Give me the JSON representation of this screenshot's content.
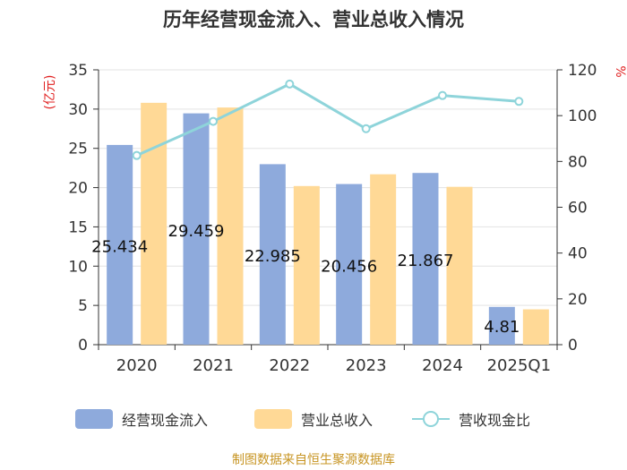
{
  "title": "历年经营现金流入、营业总收入情况",
  "source": "制图数据来自恒生聚源数据库",
  "colors": {
    "inflow": "#8eaadc",
    "revenue": "#ffd996",
    "ratio": "#8ed4da",
    "axis_left": "#e02020",
    "axis_right": "#e02020",
    "grid": "#e3e3e3"
  },
  "legend": {
    "inflow": "经营现金流入",
    "revenue": "营业总收入",
    "ratio": "营收现金比"
  },
  "chart_data": {
    "type": "bar",
    "categories": [
      "2020",
      "2021",
      "2022",
      "2023",
      "2024",
      "2025Q1"
    ],
    "series": [
      {
        "name": "经营现金流入",
        "type": "bar",
        "axis": "left",
        "values": [
          25.434,
          29.459,
          22.985,
          20.456,
          21.867,
          4.81
        ],
        "labels": [
          "25.434",
          "29.459",
          "22.985",
          "20.456",
          "21.867",
          "4.81"
        ]
      },
      {
        "name": "营业总收入",
        "type": "bar",
        "axis": "left",
        "values": [
          30.8,
          30.2,
          20.2,
          21.7,
          20.1,
          4.5
        ]
      },
      {
        "name": "营收现金比",
        "type": "line",
        "axis": "right",
        "values": [
          82.6,
          97.5,
          113.8,
          94.3,
          108.8,
          106.2
        ]
      }
    ],
    "y_left": {
      "label": "(亿元)",
      "min": 0,
      "max": 35,
      "ticks": [
        0,
        5,
        10,
        15,
        20,
        25,
        30,
        35
      ]
    },
    "y_right": {
      "label": "%",
      "min": 0,
      "max": 120,
      "ticks": [
        0,
        20,
        40,
        60,
        80,
        100,
        120
      ]
    },
    "grid": true,
    "legend_position": "bottom"
  }
}
